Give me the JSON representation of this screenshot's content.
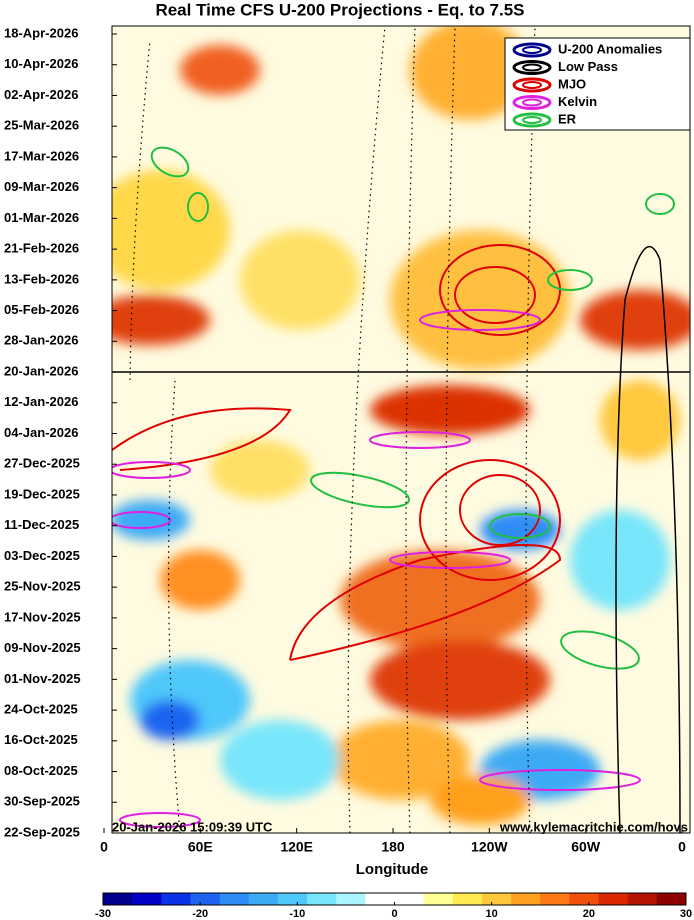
{
  "chart_data": {
    "type": "heatmap",
    "title": "Real Time CFS U-200 Projections - Eq. to 7.5S",
    "xlabel": "Longitude",
    "xlim": [
      0,
      360
    ],
    "xticks": [
      0,
      {
        "value": 60,
        "label": "60E"
      },
      {
        "value": 120,
        "label": "120E"
      },
      180,
      {
        "value": 240,
        "label": "120W"
      },
      {
        "value": 300,
        "label": "60W"
      },
      {
        "value": 360,
        "label": "0"
      }
    ],
    "y": [
      "18-Apr-2026",
      "10-Apr-2026",
      "02-Apr-2026",
      "25-Mar-2026",
      "17-Mar-2026",
      "09-Mar-2026",
      "01-Mar-2026",
      "21-Feb-2026",
      "13-Feb-2026",
      "05-Feb-2026",
      "28-Jan-2026",
      "20-Jan-2026",
      "12-Jan-2026",
      "04-Jan-2026",
      "27-Dec-2025",
      "19-Dec-2025",
      "11-Dec-2025",
      "03-Dec-2025",
      "25-Nov-2025",
      "17-Nov-2025",
      "09-Nov-2025",
      "01-Nov-2025",
      "24-Oct-2025",
      "16-Oct-2025",
      "08-Oct-2025",
      "30-Sep-2025",
      "22-Sep-2025"
    ],
    "series": [
      {
        "name": "U-200 Anomalies",
        "color": "#00008c"
      },
      {
        "name": "Low Pass",
        "color": "#000000"
      },
      {
        "name": "MJO",
        "color": "#e00000"
      },
      {
        "name": "Kelvin",
        "color": "#e020e0"
      },
      {
        "name": "ER",
        "color": "#22c040"
      }
    ],
    "timestamp": "20-Jan-2026 15:09:39 UTC",
    "url": "www.kylemacritchie.com/hovs",
    "colorbar": {
      "clim": [
        -30,
        30
      ],
      "ticks": [
        -30,
        -20,
        -10,
        0,
        10,
        20,
        30
      ],
      "colors": [
        "#00008c",
        "#0000c8",
        "#0a32e6",
        "#1e64f0",
        "#2d8cf5",
        "#3caaf5",
        "#50c8fa",
        "#78e6fa",
        "#aaf5ff",
        "#ffffff",
        "#ffffff",
        "#ffff96",
        "#ffeb50",
        "#ffc83c",
        "#ffa01e",
        "#ff7814",
        "#f0500a",
        "#dc2800",
        "#b41400",
        "#8c0000"
      ]
    }
  }
}
